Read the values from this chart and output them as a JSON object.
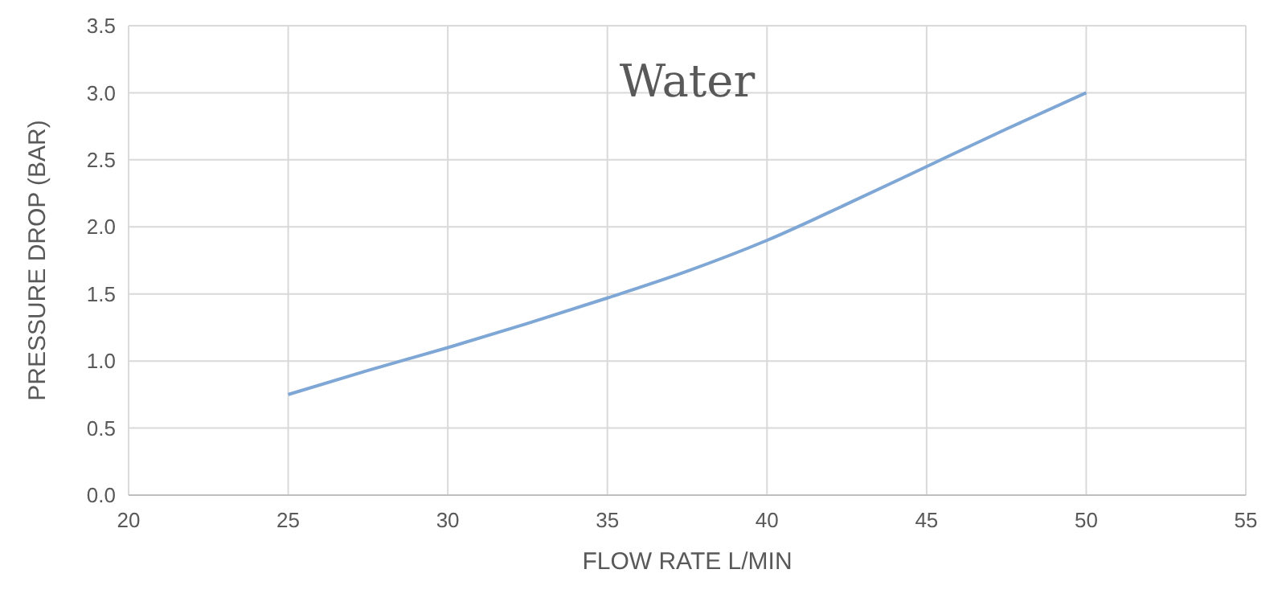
{
  "chart_data": {
    "type": "line",
    "title": "Water",
    "xlabel": "FLOW RATE L/MIN",
    "ylabel": "PRESSURE DROP (BAR)",
    "x": [
      25,
      27.5,
      30,
      32.5,
      35,
      37.5,
      40,
      42.5,
      45,
      47.5,
      50
    ],
    "series": [
      {
        "color": "#7fa7d6",
        "values": [
          0.75,
          0.93,
          1.1,
          1.28,
          1.47,
          1.67,
          1.9,
          2.17,
          2.45,
          2.73,
          3.0
        ]
      }
    ],
    "xlim": [
      20,
      55
    ],
    "xticks": [
      20,
      25,
      30,
      35,
      40,
      45,
      50,
      55
    ],
    "ylim": [
      0,
      3.5
    ],
    "yticks": [
      {
        "value": 0,
        "label": "0.0"
      },
      {
        "value": 0.5,
        "label": "0.5"
      },
      {
        "value": 1,
        "label": "1.0"
      },
      {
        "value": 1.5,
        "label": "1.5"
      },
      {
        "value": 2,
        "label": "2.0"
      },
      {
        "value": 2.5,
        "label": "2.5"
      },
      {
        "value": 3,
        "label": "3.0"
      },
      {
        "value": 3.5,
        "label": "3.5"
      }
    ],
    "grid": true,
    "marker": "none",
    "line_style": "solid"
  }
}
